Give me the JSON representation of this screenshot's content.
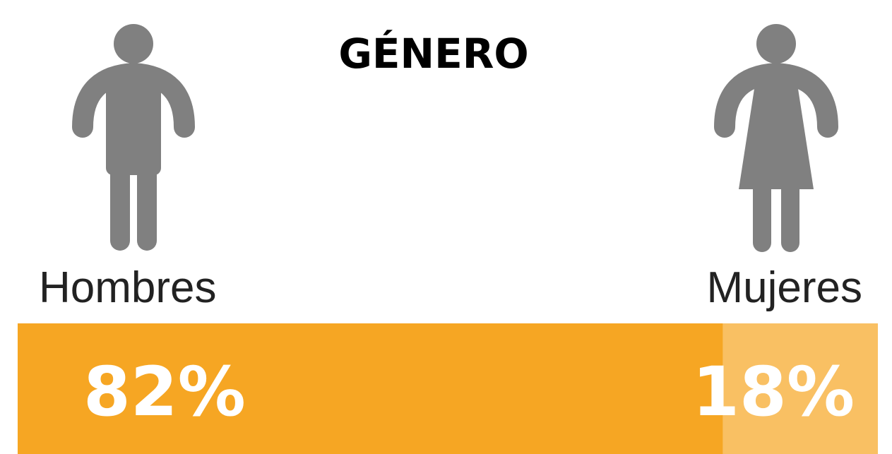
{
  "chart_data": {
    "type": "stacked-bar",
    "title": "GÉNERO",
    "series": [
      {
        "name": "Hombres",
        "color": "#f6a623",
        "values": [
          82
        ],
        "value_labels": [
          "82%"
        ]
      },
      {
        "name": "Mujeres",
        "color": "#f9c063",
        "values": [
          18
        ],
        "value_labels": [
          "18%"
        ]
      }
    ]
  }
}
